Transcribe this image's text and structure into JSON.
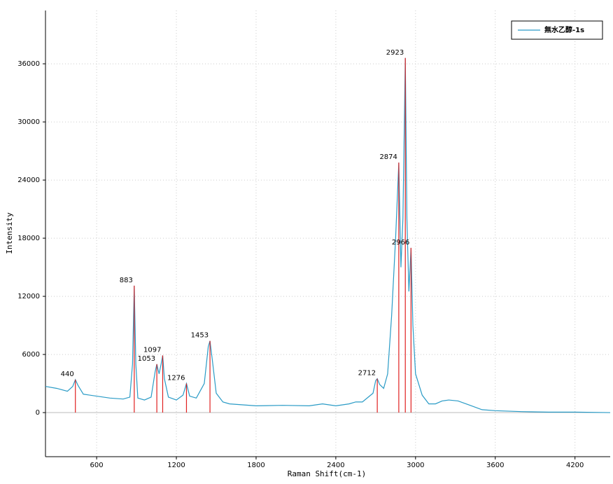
{
  "chart_data": {
    "type": "line",
    "x_label": "Raman Shift(cm-1)",
    "y_label": "Intensity",
    "xlim": [
      215,
      4465
    ],
    "ylim": [
      -4550,
      41500
    ],
    "xticks": [
      600,
      1200,
      1800,
      2400,
      3000,
      3600,
      4200
    ],
    "yticks": [
      0,
      6000,
      12000,
      18000,
      24000,
      30000,
      36000
    ],
    "grid": true,
    "legend": "upper right",
    "series": [
      {
        "name": "無水乙醇-1s",
        "color": "#2a9bc6",
        "x": [
          215,
          300,
          380,
          420,
          440,
          460,
          500,
          600,
          700,
          800,
          850,
          870,
          883,
          895,
          910,
          960,
          1010,
          1040,
          1053,
          1070,
          1085,
          1097,
          1110,
          1140,
          1200,
          1250,
          1276,
          1300,
          1350,
          1410,
          1440,
          1453,
          1470,
          1500,
          1550,
          1600,
          1700,
          1800,
          2000,
          2200,
          2300,
          2400,
          2500,
          2550,
          2600,
          2680,
          2700,
          2712,
          2730,
          2760,
          2790,
          2820,
          2850,
          2874,
          2890,
          2905,
          2923,
          2935,
          2950,
          2966,
          2980,
          3000,
          3050,
          3100,
          3150,
          3200,
          3250,
          3320,
          3400,
          3500,
          3600,
          3800,
          4000,
          4200,
          4465
        ],
        "values": [
          2700,
          2500,
          2200,
          2700,
          3400,
          2800,
          1900,
          1700,
          1500,
          1400,
          1600,
          5000,
          13100,
          5000,
          1500,
          1300,
          1600,
          4200,
          5000,
          4000,
          5000,
          5900,
          3500,
          1600,
          1300,
          1800,
          3000,
          1700,
          1500,
          3000,
          6800,
          7400,
          5500,
          2000,
          1100,
          900,
          800,
          700,
          750,
          700,
          900,
          700,
          900,
          1100,
          1100,
          2000,
          3300,
          3500,
          2900,
          2500,
          4000,
          10000,
          18000,
          25800,
          15000,
          20000,
          36600,
          20000,
          12500,
          17000,
          9000,
          4000,
          1800,
          900,
          900,
          1200,
          1300,
          1200,
          800,
          300,
          200,
          100,
          50,
          50,
          0
        ]
      }
    ],
    "peaks": {
      "color": "#e02020",
      "x": [
        440,
        883,
        1053,
        1097,
        1276,
        1453,
        2712,
        2874,
        2923,
        2966
      ],
      "values": [
        3400,
        13100,
        5000,
        5900,
        3000,
        7400,
        3500,
        25800,
        36600,
        17000
      ]
    }
  }
}
